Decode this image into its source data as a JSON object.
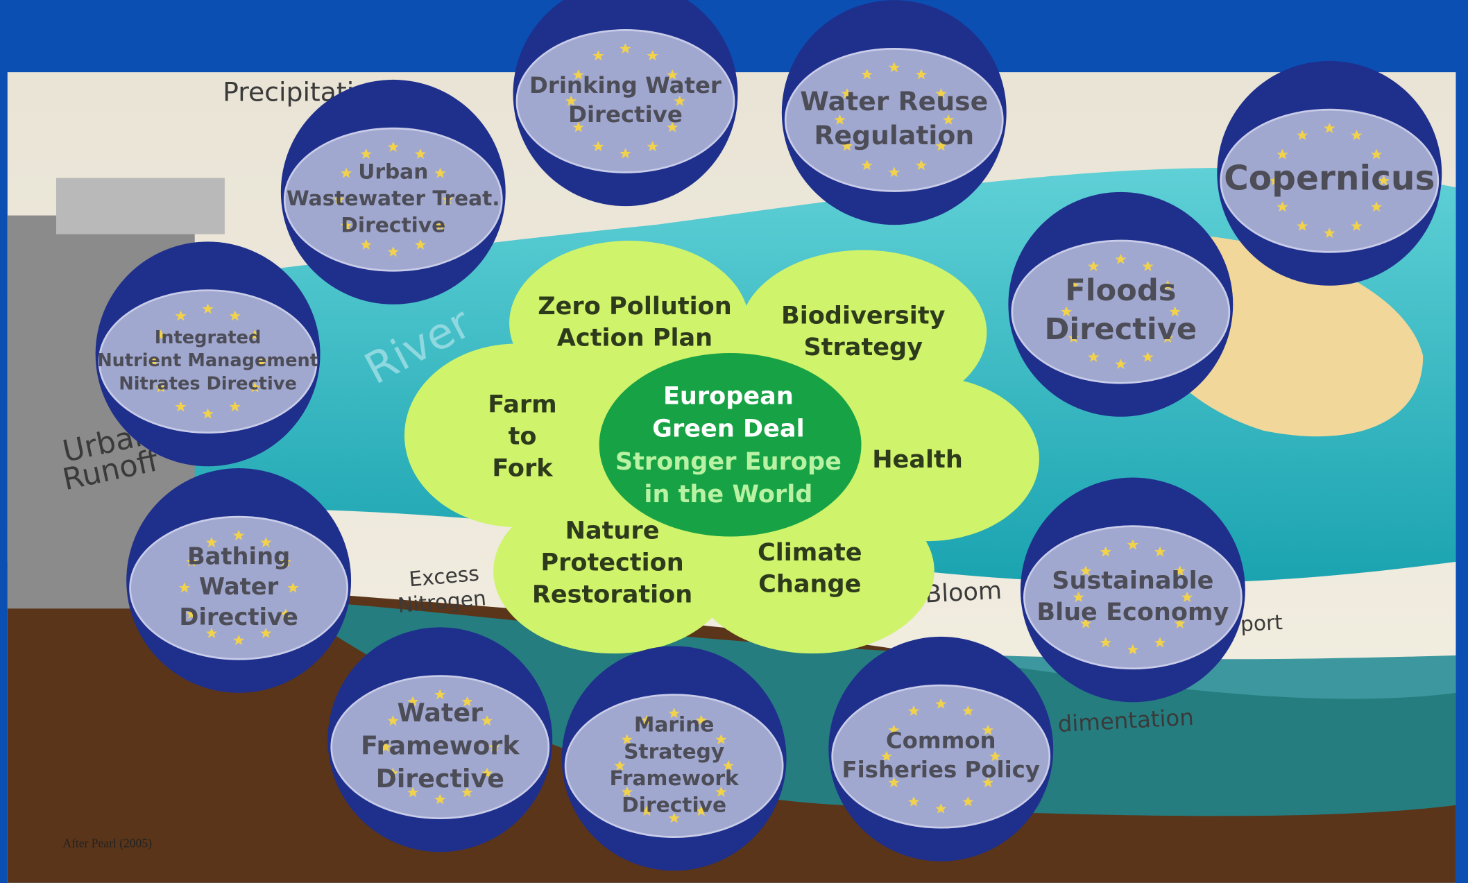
{
  "center": {
    "lines": [
      "European",
      "Green Deal"
    ],
    "subtitle_lines": [
      "Stronger Europe",
      "in the World"
    ]
  },
  "petals": [
    {
      "lines": [
        "Zero Pollution",
        "Action Plan"
      ]
    },
    {
      "lines": [
        "Biodiversity",
        "Strategy"
      ]
    },
    {
      "lines": [
        "Farm",
        "to",
        "Fork"
      ]
    },
    {
      "lines": [
        "Health"
      ]
    },
    {
      "lines": [
        "Nature",
        "Protection",
        "Restoration"
      ]
    },
    {
      "lines": [
        "Climate",
        "Change"
      ]
    }
  ],
  "directives": [
    {
      "lines": [
        "Drinking Water",
        "Directive"
      ]
    },
    {
      "lines": [
        "Water Reuse",
        "Regulation"
      ]
    },
    {
      "lines": [
        "Copernicus"
      ]
    },
    {
      "lines": [
        "Urban",
        "Wastewater Treat.",
        "Directive"
      ]
    },
    {
      "lines": [
        "Integrated",
        "Nutrient Management",
        "Nitrates Directive"
      ]
    },
    {
      "lines": [
        "Floods",
        "Directive"
      ]
    },
    {
      "lines": [
        "Bathing",
        "Water",
        "Directive"
      ]
    },
    {
      "lines": [
        "Sustainable",
        "Blue Economy"
      ]
    },
    {
      "lines": [
        "Water",
        "Framework",
        "Directive"
      ]
    },
    {
      "lines": [
        "Marine",
        "Strategy",
        "Framework",
        "Directive"
      ]
    },
    {
      "lines": [
        "Common",
        "Fisheries Policy"
      ]
    }
  ],
  "background_labels": [
    "Precipitation",
    "River",
    "Urban",
    "Runoff",
    "Excess",
    "Nitrogen",
    "Bloom",
    "port",
    "dimentation"
  ],
  "credit": "After Pearl (2005)"
}
